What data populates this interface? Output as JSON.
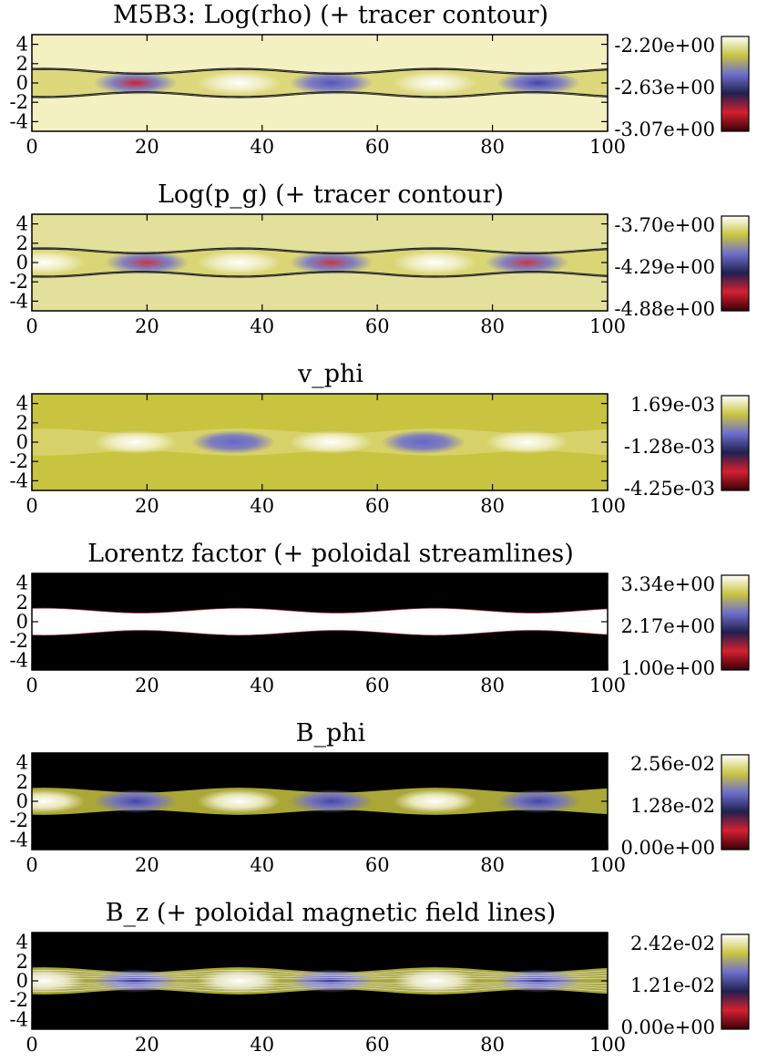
{
  "chart_data": [
    {
      "type": "heatmap",
      "title": "M5B3: Log(rho) (+ tracer contour)",
      "x_ticks": [
        "0",
        "20",
        "40",
        "60",
        "80",
        "100"
      ],
      "y_ticks": [
        "4",
        "2",
        "0",
        "-2",
        "-4"
      ],
      "xlim": [
        0,
        100
      ],
      "ylim": [
        -5,
        5
      ],
      "colorbar_ticks": [
        "-2.20e+00",
        "-2.63e+00",
        "-3.07e+00"
      ],
      "colorbar_range": [
        -3.07,
        -2.2
      ],
      "background": "#f3f0c2",
      "overlay": "tracer contour",
      "features": [
        {
          "x": 18,
          "color": "#cc2233",
          "kind": "dark"
        },
        {
          "x": 36,
          "color": "#ffffff",
          "kind": "light"
        },
        {
          "x": 52,
          "color": "#5555bb",
          "kind": "dark"
        },
        {
          "x": 70,
          "color": "#ffffff",
          "kind": "light"
        },
        {
          "x": 88,
          "color": "#4444aa",
          "kind": "dark"
        }
      ]
    },
    {
      "type": "heatmap",
      "title": "Log(p_g) (+ tracer contour)",
      "x_ticks": [
        "0",
        "20",
        "40",
        "60",
        "80",
        "100"
      ],
      "y_ticks": [
        "4",
        "2",
        "0",
        "-2",
        "-4"
      ],
      "xlim": [
        0,
        100
      ],
      "ylim": [
        -5,
        5
      ],
      "colorbar_ticks": [
        "-3.70e+00",
        "-4.29e+00",
        "-4.88e+00"
      ],
      "colorbar_range": [
        -4.88,
        -3.7
      ],
      "background": "#e2e09a",
      "overlay": "tracer contour",
      "features": [
        {
          "x": 2,
          "color": "#ffffff",
          "kind": "light"
        },
        {
          "x": 20,
          "color": "#cc3344",
          "kind": "dark"
        },
        {
          "x": 36,
          "color": "#ffffff",
          "kind": "light"
        },
        {
          "x": 52,
          "color": "#cc3344",
          "kind": "dark"
        },
        {
          "x": 70,
          "color": "#ffffff",
          "kind": "light"
        },
        {
          "x": 86,
          "color": "#cc3344",
          "kind": "dark"
        }
      ]
    },
    {
      "type": "heatmap",
      "title": "v_phi",
      "x_ticks": [
        "0",
        "20",
        "40",
        "60",
        "80",
        "100"
      ],
      "y_ticks": [
        "4",
        "2",
        "0",
        "-2",
        "-4"
      ],
      "xlim": [
        0,
        100
      ],
      "ylim": [
        -5,
        5
      ],
      "colorbar_ticks": [
        "1.69e-03",
        "-1.28e-03",
        "-4.25e-03"
      ],
      "colorbar_range": [
        -0.00425,
        0.00169
      ],
      "background": "#c8c440",
      "overlay": "",
      "features": [
        {
          "x": 18,
          "color": "#ffffff",
          "kind": "light"
        },
        {
          "x": 35,
          "color": "#6666cc",
          "kind": "dark"
        },
        {
          "x": 52,
          "color": "#ffffff",
          "kind": "light"
        },
        {
          "x": 68,
          "color": "#6666cc",
          "kind": "dark"
        },
        {
          "x": 86,
          "color": "#ffffff",
          "kind": "light"
        }
      ]
    },
    {
      "type": "heatmap",
      "title": "Lorentz factor (+ poloidal streamlines)",
      "x_ticks": [
        "0",
        "20",
        "40",
        "60",
        "80",
        "100"
      ],
      "y_ticks": [
        "4",
        "2",
        "0",
        "-2",
        "-4"
      ],
      "xlim": [
        0,
        100
      ],
      "ylim": [
        -5,
        5
      ],
      "colorbar_ticks": [
        "3.34e+00",
        "2.17e+00",
        "1.00e+00"
      ],
      "colorbar_range": [
        1.0,
        3.34
      ],
      "background": "#000000",
      "overlay": "poloidal streamlines",
      "features": []
    },
    {
      "type": "heatmap",
      "title": "B_phi",
      "x_ticks": [
        "0",
        "20",
        "40",
        "60",
        "80",
        "100"
      ],
      "y_ticks": [
        "4",
        "2",
        "0",
        "-2",
        "-4"
      ],
      "xlim": [
        0,
        100
      ],
      "ylim": [
        -5,
        5
      ],
      "colorbar_ticks": [
        "2.56e-02",
        "1.28e-02",
        "0.00e+00"
      ],
      "colorbar_range": [
        0.0,
        0.0256
      ],
      "background": "#000000",
      "overlay": "",
      "features": [
        {
          "x": 2,
          "color": "#ffffff",
          "kind": "light"
        },
        {
          "x": 18,
          "color": "#4444aa",
          "kind": "dark"
        },
        {
          "x": 36,
          "color": "#ffffff",
          "kind": "light"
        },
        {
          "x": 52,
          "color": "#4444aa",
          "kind": "dark"
        },
        {
          "x": 70,
          "color": "#ffffff",
          "kind": "light"
        },
        {
          "x": 88,
          "color": "#4444aa",
          "kind": "dark"
        }
      ]
    },
    {
      "type": "heatmap",
      "title": "B_z (+ poloidal magnetic field lines)",
      "x_ticks": [
        "0",
        "20",
        "40",
        "60",
        "80",
        "100"
      ],
      "y_ticks": [
        "4",
        "2",
        "0",
        "-2",
        "-4"
      ],
      "xlim": [
        0,
        100
      ],
      "ylim": [
        -5,
        5
      ],
      "colorbar_ticks": [
        "2.42e-02",
        "1.21e-02",
        "0.00e+00"
      ],
      "colorbar_range": [
        0.0,
        0.0242
      ],
      "background": "#000000",
      "overlay": "poloidal magnetic field lines",
      "features": [
        {
          "x": 2,
          "color": "#ffffff",
          "kind": "light"
        },
        {
          "x": 18,
          "color": "#3333aa",
          "kind": "dark"
        },
        {
          "x": 36,
          "color": "#ffffff",
          "kind": "light"
        },
        {
          "x": 52,
          "color": "#3333aa",
          "kind": "dark"
        },
        {
          "x": 70,
          "color": "#ffffff",
          "kind": "light"
        },
        {
          "x": 88,
          "color": "#3333aa",
          "kind": "dark"
        }
      ]
    }
  ],
  "colormap": [
    "#ffffff",
    "#c8c440",
    "#6e6ecc",
    "#202050",
    "#d42030",
    "#3a0008"
  ]
}
